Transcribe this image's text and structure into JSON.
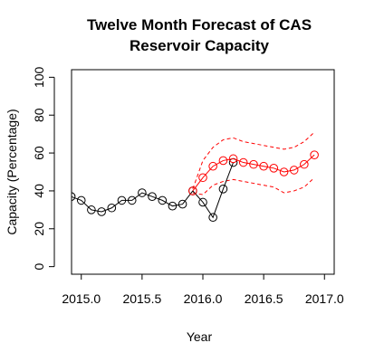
{
  "chart_data": {
    "type": "line",
    "title_lines": [
      "Twelve Month Forecast of CAS",
      "Reservoir Capacity"
    ],
    "xlabel": "Year",
    "ylabel": "Capacity (Percentage)",
    "xlim": [
      2014.92,
      2017.08
    ],
    "ylim": [
      -4,
      104
    ],
    "x_ticks": [
      2015.0,
      2015.5,
      2016.0,
      2016.5,
      2017.0
    ],
    "x_tick_labels": [
      "2015.0",
      "2015.5",
      "2016.0",
      "2016.5",
      "2017.0"
    ],
    "y_ticks": [
      0,
      20,
      40,
      60,
      80,
      100
    ],
    "y_tick_labels": [
      "0",
      "20",
      "40",
      "60",
      "80",
      "100"
    ],
    "grid": false,
    "series": [
      {
        "role": "observed",
        "color": "#000000",
        "style": "line+circle",
        "x": [
          2014.917,
          2015.0,
          2015.083,
          2015.167,
          2015.25,
          2015.333,
          2015.417,
          2015.5,
          2015.583,
          2015.667,
          2015.75,
          2015.833,
          2015.917,
          2016.0,
          2016.083,
          2016.167,
          2016.25
        ],
        "y": [
          37,
          35,
          30,
          29,
          31,
          35,
          35,
          39,
          37,
          35,
          32,
          33,
          40,
          34,
          26,
          41,
          55
        ]
      },
      {
        "role": "forecast",
        "color": "#ff0000",
        "style": "line+circle",
        "x": [
          2015.917,
          2016.0,
          2016.083,
          2016.167,
          2016.25,
          2016.333,
          2016.417,
          2016.5,
          2016.583,
          2016.667,
          2016.75,
          2016.833,
          2016.917
        ],
        "y": [
          40,
          47,
          53,
          56,
          57,
          55,
          54,
          53,
          52,
          50,
          51,
          54,
          59
        ]
      },
      {
        "role": "forecast-upper",
        "color": "#ff0000",
        "style": "dashed",
        "x": [
          2015.917,
          2016.0,
          2016.083,
          2016.167,
          2016.25,
          2016.333,
          2016.417,
          2016.5,
          2016.583,
          2016.667,
          2016.75,
          2016.833,
          2016.917
        ],
        "y": [
          41,
          56,
          63,
          67,
          68,
          66,
          65,
          64,
          63,
          62,
          63,
          66,
          71
        ]
      },
      {
        "role": "forecast-lower",
        "color": "#ff0000",
        "style": "dashed",
        "x": [
          2015.917,
          2016.0,
          2016.083,
          2016.167,
          2016.25,
          2016.333,
          2016.417,
          2016.5,
          2016.583,
          2016.667,
          2016.75,
          2016.833,
          2016.917
        ],
        "y": [
          39,
          38,
          43,
          45,
          46,
          45,
          44,
          43,
          42,
          39,
          40,
          42,
          47
        ]
      }
    ]
  }
}
